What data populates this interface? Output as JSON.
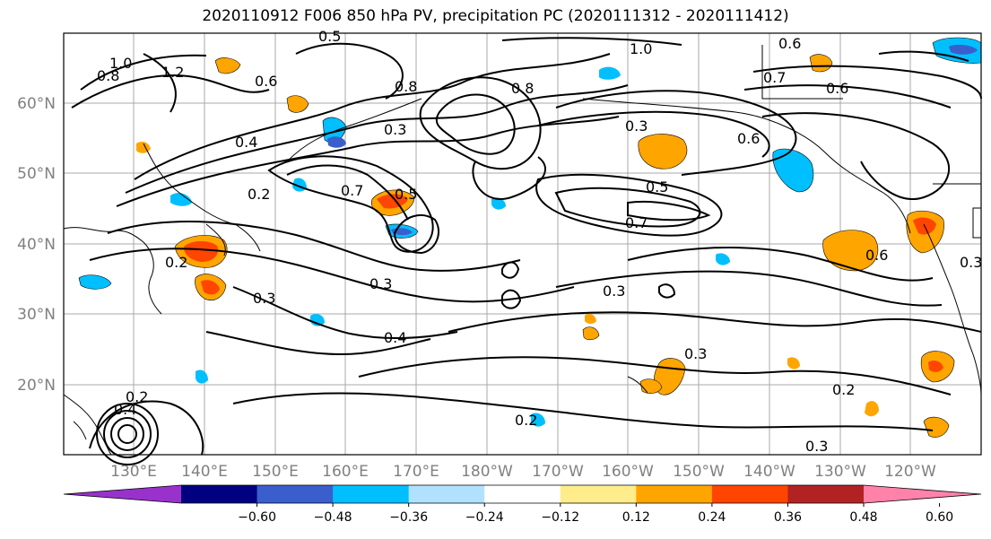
{
  "title": "2020110912 F006 850 hPa PV, precipitation PC (2020111312 - 2020111412)",
  "map": {
    "lon_labels": [
      "130°E",
      "140°E",
      "150°E",
      "160°E",
      "170°E",
      "180°W",
      "170°W",
      "160°W",
      "150°W",
      "140°W",
      "130°W",
      "120°W"
    ],
    "lat_labels": [
      "60°N",
      "50°N",
      "40°N",
      "30°N",
      "20°N"
    ],
    "contour_labels": [
      "1.0",
      "0.8",
      "1.2",
      "0.6",
      "0.5",
      "0.8",
      "1.0",
      "0.6",
      "0.7",
      "0.6",
      "0.4",
      "0.3",
      "0.2",
      "0.6",
      "0.5",
      "0.7",
      "0.6",
      "0.3",
      "0.2",
      "0.3",
      "0.3",
      "0.4",
      "0.3",
      "0.3",
      "0.5",
      "0.7",
      "0.8",
      "0.2",
      "0.3",
      "0.2",
      "0.3",
      "0.4",
      "0.2"
    ]
  },
  "colorbar": {
    "ticks": [
      "−0.60",
      "−0.48",
      "−0.36",
      "−0.24",
      "−0.12",
      "0.12",
      "0.24",
      "0.36",
      "0.48",
      "0.60"
    ],
    "colors": [
      "#9932cc",
      "#000080",
      "#3a5fcd",
      "#00bfff",
      "#b0e2ff",
      "#ffffff",
      "#ffec8b",
      "#ffa500",
      "#ff4500",
      "#b22222",
      "#ff82ab"
    ]
  }
}
